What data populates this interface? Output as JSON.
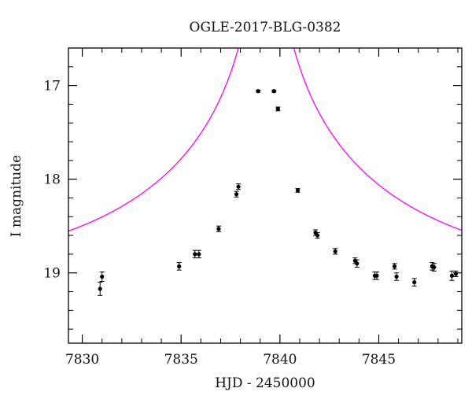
{
  "chart_data": {
    "type": "scatter",
    "title": "OGLE-2017-BLG-0382",
    "xlabel": "HJD - 2450000",
    "ylabel": "I magnitude",
    "xlim": [
      7829.3,
      7849.2
    ],
    "ylim": [
      19.75,
      16.6
    ],
    "y_inverted": true,
    "x_ticks": [
      7830,
      7835,
      7840,
      7845
    ],
    "y_ticks": [
      17,
      18,
      19
    ],
    "x_minor_step": 1,
    "y_minor_step": 0.2,
    "grid": false,
    "colors": {
      "model": "#ff00ff",
      "points": "#000000",
      "axes": "#000000"
    },
    "series": [
      {
        "kind": "observations",
        "points": [
          {
            "x": 7830.9,
            "y": 19.17,
            "err": 0.07
          },
          {
            "x": 7831.0,
            "y": 19.04,
            "err": 0.05
          },
          {
            "x": 7834.9,
            "y": 18.93,
            "err": 0.04
          },
          {
            "x": 7835.7,
            "y": 18.8,
            "err": 0.04
          },
          {
            "x": 7835.9,
            "y": 18.8,
            "err": 0.04
          },
          {
            "x": 7836.9,
            "y": 18.53,
            "err": 0.03
          },
          {
            "x": 7837.8,
            "y": 18.16,
            "err": 0.03
          },
          {
            "x": 7837.9,
            "y": 18.08,
            "err": 0.03
          },
          {
            "x": 7838.9,
            "y": 17.06,
            "err": 0.01
          },
          {
            "x": 7839.7,
            "y": 17.06,
            "err": 0.01
          },
          {
            "x": 7839.9,
            "y": 17.25,
            "err": 0.02
          },
          {
            "x": 7840.9,
            "y": 18.12,
            "err": 0.02
          },
          {
            "x": 7841.8,
            "y": 18.57,
            "err": 0.03
          },
          {
            "x": 7841.9,
            "y": 18.6,
            "err": 0.03
          },
          {
            "x": 7842.8,
            "y": 18.77,
            "err": 0.03
          },
          {
            "x": 7843.8,
            "y": 18.87,
            "err": 0.03
          },
          {
            "x": 7843.9,
            "y": 18.9,
            "err": 0.04
          },
          {
            "x": 7844.8,
            "y": 19.03,
            "err": 0.04
          },
          {
            "x": 7844.9,
            "y": 19.03,
            "err": 0.04
          },
          {
            "x": 7845.8,
            "y": 18.93,
            "err": 0.03
          },
          {
            "x": 7845.9,
            "y": 19.04,
            "err": 0.04
          },
          {
            "x": 7846.8,
            "y": 19.1,
            "err": 0.04
          },
          {
            "x": 7847.7,
            "y": 18.93,
            "err": 0.04
          },
          {
            "x": 7847.8,
            "y": 18.94,
            "err": 0.04
          },
          {
            "x": 7848.7,
            "y": 19.03,
            "err": 0.05
          },
          {
            "x": 7848.9,
            "y": 19.01,
            "err": 0.03
          }
        ]
      },
      {
        "kind": "model",
        "peak_x": 7839.3,
        "baseline_mag": 19.1,
        "u0": 0.005,
        "tE": 14.0
      }
    ]
  }
}
